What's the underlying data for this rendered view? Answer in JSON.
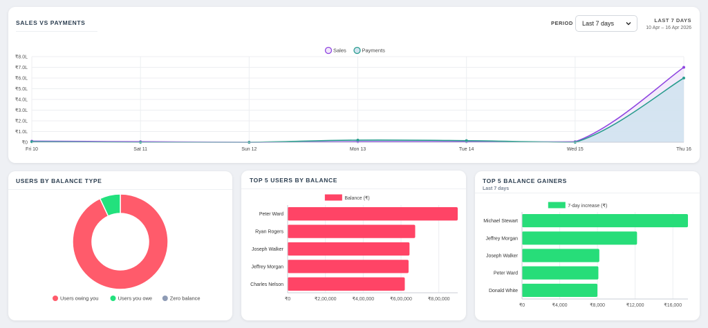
{
  "main": {
    "title": "SALES VS PAYMENTS",
    "period_label": "PERIOD",
    "period_value": "Last 7 days",
    "range_title": "LAST 7 DAYS",
    "range_dates": "10 Apr – 16 Apr 2026"
  },
  "type_card": {
    "title": "USERS BY BALANCE TYPE"
  },
  "top_card": {
    "title": "TOP 5 USERS BY BALANCE"
  },
  "gain_card": {
    "title": "TOP 5 BALANCE GAINERS",
    "subtitle": "Last 7 days"
  },
  "chart_data": [
    {
      "type": "area",
      "categories": [
        "Fri 10",
        "Sat 11",
        "Sun 12",
        "Mon 13",
        "Tue 14",
        "Wed 15",
        "Thu 16"
      ],
      "series": [
        {
          "name": "Sales",
          "color": "#8e44e0",
          "fill": "#f1e6fa",
          "values": [
            0.1,
            0.05,
            0.0,
            0.05,
            0.05,
            0.05,
            7.0
          ]
        },
        {
          "name": "Payments",
          "color": "#2a9d8f",
          "fill": "#cfe3ee",
          "values": [
            0.05,
            0.0,
            0.0,
            0.2,
            0.15,
            0.0,
            6.0
          ]
        }
      ],
      "y_ticks": [
        "₹0",
        "₹1.0L",
        "₹2.0L",
        "₹3.0L",
        "₹4.0L",
        "₹5.0L",
        "₹6.0L",
        "₹7.0L",
        "₹8.0L"
      ],
      "ylim": [
        0,
        8
      ],
      "legend": "top-center",
      "grid": true
    },
    {
      "type": "pie",
      "labels": [
        "Users owing you",
        "Users you owe",
        "Zero balance"
      ],
      "values": [
        93,
        7,
        0
      ],
      "colors": [
        "#ff5b6b",
        "#22e17d",
        "#8e9bb5"
      ],
      "legend": "bottom"
    },
    {
      "type": "bar",
      "orientation": "horizontal",
      "categories": [
        "Peter Ward",
        "Ryan Rogers",
        "Joseph Walker",
        "Jeffrey Morgan",
        "Charles Nelson"
      ],
      "series": [
        {
          "name": "Balance (₹)",
          "color": "#ff4466",
          "values": [
            900000,
            675000,
            645000,
            640000,
            620000
          ]
        }
      ],
      "x_ticks": [
        0,
        200000,
        400000,
        600000,
        800000
      ],
      "x_tick_labels": [
        "₹0",
        "₹2,00,000",
        "₹4,00,000",
        "₹6,00,000",
        "₹8,00,000"
      ],
      "xlim": [
        0,
        900000
      ],
      "legend": "top-center",
      "grid": true
    },
    {
      "type": "bar",
      "orientation": "horizontal",
      "categories": [
        "Michael Stewart",
        "Jeffrey Morgan",
        "Joseph Walker",
        "Peter Ward",
        "Donald White"
      ],
      "series": [
        {
          "name": "7-day increase (₹)",
          "color": "#27dd79",
          "values": [
            17600,
            12200,
            8200,
            8100,
            8000
          ]
        }
      ],
      "x_ticks": [
        0,
        4000,
        8000,
        12000,
        16000
      ],
      "x_tick_labels": [
        "₹0",
        "₹4,000",
        "₹8,000",
        "₹12,000",
        "₹16,000"
      ],
      "xlim": [
        0,
        17600
      ],
      "legend": "top-center",
      "grid": true
    }
  ]
}
